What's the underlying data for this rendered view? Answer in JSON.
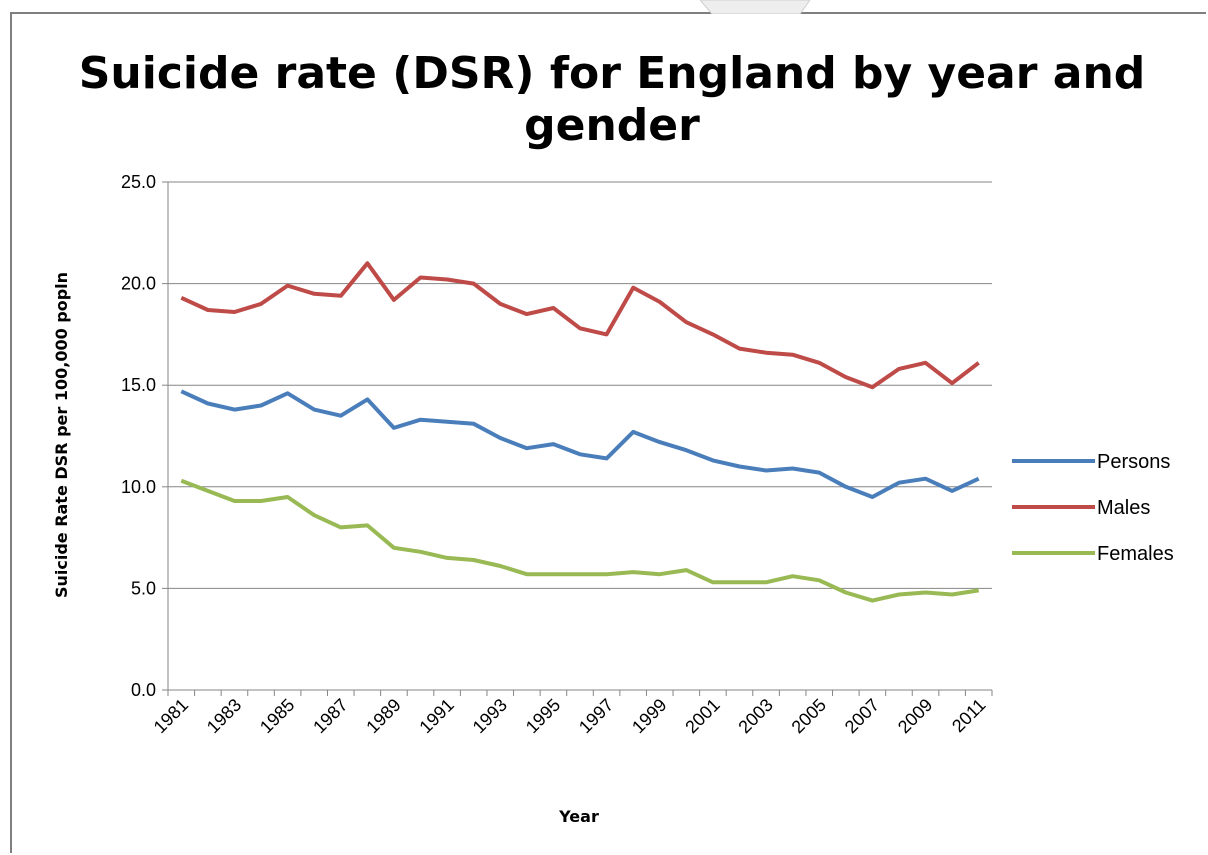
{
  "chart_data": {
    "type": "line",
    "title_line1": "Suicide rate (DSR) for England by year and",
    "title_line2": "gender",
    "xlabel": "Year",
    "ylabel": "Suicide Rate DSR per 100,000 popln",
    "ylim": [
      0,
      25
    ],
    "y_ticks": [
      "0.0",
      "5.0",
      "10.0",
      "15.0",
      "20.0",
      "25.0"
    ],
    "x": [
      1981,
      1982,
      1983,
      1984,
      1985,
      1986,
      1987,
      1988,
      1989,
      1990,
      1991,
      1992,
      1993,
      1994,
      1995,
      1996,
      1997,
      1998,
      1999,
      2000,
      2001,
      2002,
      2003,
      2004,
      2005,
      2006,
      2007,
      2008,
      2009,
      2010,
      2011
    ],
    "x_tick_labels": [
      "1981",
      "1983",
      "1985",
      "1987",
      "1989",
      "1991",
      "1993",
      "1995",
      "1997",
      "1999",
      "2001",
      "2003",
      "2005",
      "2007",
      "2009",
      "2011"
    ],
    "grid": "horizontal",
    "legend_position": "right",
    "series": [
      {
        "name": "Persons",
        "color": "#4a7ebb",
        "values": [
          14.7,
          14.1,
          13.8,
          14.0,
          14.6,
          13.8,
          13.5,
          14.3,
          12.9,
          13.3,
          13.2,
          13.1,
          12.4,
          11.9,
          12.1,
          11.6,
          11.4,
          12.7,
          12.2,
          11.8,
          11.3,
          11.0,
          10.8,
          10.9,
          10.7,
          10.0,
          9.5,
          10.2,
          10.4,
          9.8,
          10.4
        ]
      },
      {
        "name": "Males",
        "color": "#be4b48",
        "values": [
          19.3,
          18.7,
          18.6,
          19.0,
          19.9,
          19.5,
          19.4,
          21.0,
          19.2,
          20.3,
          20.2,
          20.0,
          19.0,
          18.5,
          18.8,
          17.8,
          17.5,
          19.8,
          19.1,
          18.1,
          17.5,
          16.8,
          16.6,
          16.5,
          16.1,
          15.4,
          14.9,
          15.8,
          16.1,
          15.1,
          16.1
        ]
      },
      {
        "name": "Females",
        "color": "#98b954",
        "values": [
          10.3,
          9.8,
          9.3,
          9.3,
          9.5,
          8.6,
          8.0,
          8.1,
          7.0,
          6.8,
          6.5,
          6.4,
          6.1,
          5.7,
          5.7,
          5.7,
          5.7,
          5.8,
          5.7,
          5.9,
          5.3,
          5.3,
          5.3,
          5.6,
          5.4,
          4.8,
          4.4,
          4.7,
          4.8,
          4.7,
          4.9
        ]
      }
    ]
  }
}
